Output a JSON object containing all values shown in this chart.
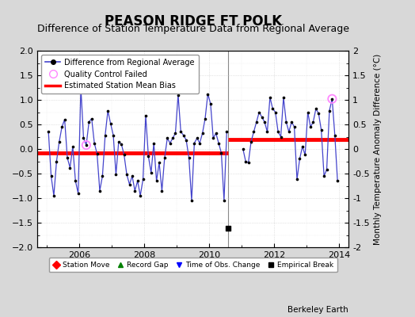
{
  "title": "PEASON RIDGE FT POLK",
  "subtitle": "Difference of Station Temperature Data from Regional Average",
  "ylabel": "Monthly Temperature Anomaly Difference (°C)",
  "ylim": [
    -2,
    2
  ],
  "xlim": [
    2004.7,
    2014.3
  ],
  "yticks": [
    -2,
    -1.5,
    -1,
    -0.5,
    0,
    0.5,
    1,
    1.5,
    2
  ],
  "xticks": [
    2006,
    2008,
    2010,
    2012,
    2014
  ],
  "background_color": "#d8d8d8",
  "plot_bg_color": "#ffffff",
  "grid_color": "#cccccc",
  "title_fontsize": 12,
  "subtitle_fontsize": 9,
  "bias_break_x": 2010.583,
  "bias1_y": -0.08,
  "bias2_y": 0.2,
  "empirical_break_x": 2010.583,
  "empirical_break_y": -1.62,
  "time_series": [
    [
      2005.042,
      0.35
    ],
    [
      2005.125,
      -0.55
    ],
    [
      2005.208,
      -0.95
    ],
    [
      2005.292,
      -0.25
    ],
    [
      2005.375,
      0.15
    ],
    [
      2005.458,
      0.45
    ],
    [
      2005.542,
      0.6
    ],
    [
      2005.625,
      -0.18
    ],
    [
      2005.708,
      -0.38
    ],
    [
      2005.792,
      0.05
    ],
    [
      2005.875,
      -0.65
    ],
    [
      2005.958,
      -0.9
    ],
    [
      2006.042,
      1.25
    ],
    [
      2006.125,
      0.22
    ],
    [
      2006.208,
      0.08
    ],
    [
      2006.292,
      0.55
    ],
    [
      2006.375,
      0.62
    ],
    [
      2006.458,
      0.12
    ],
    [
      2006.542,
      -0.1
    ],
    [
      2006.625,
      -0.85
    ],
    [
      2006.708,
      -0.55
    ],
    [
      2006.792,
      0.28
    ],
    [
      2006.875,
      0.78
    ],
    [
      2006.958,
      0.52
    ],
    [
      2007.042,
      0.28
    ],
    [
      2007.125,
      -0.52
    ],
    [
      2007.208,
      0.15
    ],
    [
      2007.292,
      0.1
    ],
    [
      2007.375,
      -0.12
    ],
    [
      2007.458,
      -0.52
    ],
    [
      2007.542,
      -0.72
    ],
    [
      2007.625,
      -0.55
    ],
    [
      2007.708,
      -0.85
    ],
    [
      2007.792,
      -0.65
    ],
    [
      2007.875,
      -0.95
    ],
    [
      2007.958,
      -0.62
    ],
    [
      2008.042,
      0.68
    ],
    [
      2008.125,
      -0.15
    ],
    [
      2008.208,
      -0.48
    ],
    [
      2008.292,
      0.12
    ],
    [
      2008.375,
      -0.65
    ],
    [
      2008.458,
      -0.28
    ],
    [
      2008.542,
      -0.85
    ],
    [
      2008.625,
      -0.18
    ],
    [
      2008.708,
      0.22
    ],
    [
      2008.792,
      0.12
    ],
    [
      2008.875,
      0.22
    ],
    [
      2008.958,
      0.32
    ],
    [
      2009.042,
      1.1
    ],
    [
      2009.125,
      0.35
    ],
    [
      2009.208,
      0.28
    ],
    [
      2009.292,
      0.18
    ],
    [
      2009.375,
      -0.18
    ],
    [
      2009.458,
      -1.05
    ],
    [
      2009.542,
      0.12
    ],
    [
      2009.625,
      0.22
    ],
    [
      2009.708,
      0.12
    ],
    [
      2009.792,
      0.32
    ],
    [
      2009.875,
      0.62
    ],
    [
      2009.958,
      1.12
    ],
    [
      2010.042,
      0.92
    ],
    [
      2010.125,
      0.22
    ],
    [
      2010.208,
      0.32
    ],
    [
      2010.292,
      0.12
    ],
    [
      2010.375,
      -0.08
    ],
    [
      2010.458,
      -1.05
    ],
    [
      2010.542,
      0.35
    ],
    [
      2011.042,
      0.0
    ],
    [
      2011.125,
      -0.25
    ],
    [
      2011.208,
      -0.28
    ],
    [
      2011.292,
      0.15
    ],
    [
      2011.375,
      0.35
    ],
    [
      2011.458,
      0.55
    ],
    [
      2011.542,
      0.75
    ],
    [
      2011.625,
      0.65
    ],
    [
      2011.708,
      0.55
    ],
    [
      2011.792,
      0.35
    ],
    [
      2011.875,
      1.05
    ],
    [
      2011.958,
      0.82
    ],
    [
      2012.042,
      0.75
    ],
    [
      2012.125,
      0.35
    ],
    [
      2012.208,
      0.25
    ],
    [
      2012.292,
      1.05
    ],
    [
      2012.375,
      0.55
    ],
    [
      2012.458,
      0.35
    ],
    [
      2012.542,
      0.55
    ],
    [
      2012.625,
      0.45
    ],
    [
      2012.708,
      -0.62
    ],
    [
      2012.792,
      -0.2
    ],
    [
      2012.875,
      0.05
    ],
    [
      2012.958,
      -0.12
    ],
    [
      2013.042,
      0.75
    ],
    [
      2013.125,
      0.45
    ],
    [
      2013.208,
      0.55
    ],
    [
      2013.292,
      0.82
    ],
    [
      2013.375,
      0.72
    ],
    [
      2013.458,
      0.38
    ],
    [
      2013.542,
      -0.55
    ],
    [
      2013.625,
      -0.42
    ],
    [
      2013.708,
      0.78
    ],
    [
      2013.792,
      1.02
    ],
    [
      2013.875,
      0.28
    ],
    [
      2013.958,
      -0.65
    ]
  ],
  "qc_failed": [
    2006.042,
    2006.208,
    2013.792
  ],
  "line_color": "#4444cc",
  "marker_color": "#000000",
  "bias_color": "#ff0000",
  "qc_color": "#ff88ff",
  "break_line_color": "#888888",
  "footer_text": "Berkeley Earth"
}
